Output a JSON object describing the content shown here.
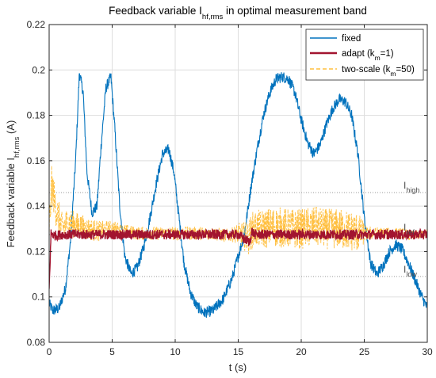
{
  "chart_data": {
    "type": "line",
    "title": "Feedback variable I",
    "title_sub": "hf,rms",
    "title_rest": " in optimal measurement band",
    "xlabel": "t (s)",
    "ylabel": "Feedback variable I",
    "ylabel_sub": "hf,rms",
    "ylabel_rest": " (A)",
    "xlim": [
      0,
      30
    ],
    "ylim": [
      0.08,
      0.22
    ],
    "xticks": [
      0,
      5,
      10,
      15,
      20,
      25,
      30
    ],
    "yticks": [
      0.08,
      0.1,
      0.12,
      0.14,
      0.16,
      0.18,
      0.2,
      0.22
    ],
    "xtick_labels": [
      "0",
      "5",
      "10",
      "15",
      "20",
      "25",
      "30"
    ],
    "ytick_labels": [
      "0.08",
      "0.1",
      "0.12",
      "0.14",
      "0.16",
      "0.18",
      "0.2",
      "0.22"
    ],
    "grid": true,
    "legend_position": "top-right",
    "legend_entries": [
      {
        "label": "fixed",
        "sub": "",
        "rest": ""
      },
      {
        "label": "adapt (k",
        "sub": "m",
        "rest": "=1)"
      },
      {
        "label": "two-scale (k",
        "sub": "m",
        "rest": "=50)"
      }
    ],
    "annotations": [
      {
        "text": "I",
        "sub": "high",
        "y": 0.146
      },
      {
        "text": "I",
        "sub": "ref",
        "y": 0.1275
      },
      {
        "text": "I",
        "sub": "low",
        "y": 0.109
      }
    ],
    "reference_lines": [
      0.146,
      0.1275,
      0.109
    ],
    "series": [
      {
        "name": "fixed",
        "color": "#0072BD",
        "noise": 0.0025,
        "x": [
          0,
          0.3,
          0.8,
          1.3,
          1.7,
          2.1,
          2.4,
          2.7,
          3.0,
          3.4,
          3.8,
          4.1,
          4.5,
          4.9,
          5.2,
          5.6,
          6.0,
          6.5,
          7.0,
          7.5,
          8.0,
          8.5,
          9.0,
          9.5,
          9.9,
          10.3,
          10.7,
          11.2,
          11.7,
          12.3,
          13.0,
          13.8,
          14.5,
          15.0,
          15.5,
          16.0,
          16.5,
          17.0,
          17.5,
          18.0,
          18.5,
          19.0,
          19.5,
          20.0,
          20.5,
          21.0,
          21.5,
          22.0,
          22.5,
          23.0,
          23.5,
          24.0,
          24.5,
          25.0,
          25.5,
          26.0,
          26.5,
          27.0,
          27.5,
          28.0,
          28.5,
          29.0,
          29.5,
          30.0
        ],
        "y": [
          0.097,
          0.094,
          0.095,
          0.104,
          0.125,
          0.16,
          0.199,
          0.19,
          0.155,
          0.137,
          0.14,
          0.165,
          0.192,
          0.197,
          0.175,
          0.14,
          0.118,
          0.11,
          0.113,
          0.122,
          0.135,
          0.15,
          0.163,
          0.165,
          0.155,
          0.135,
          0.115,
          0.102,
          0.096,
          0.093,
          0.094,
          0.099,
          0.108,
          0.118,
          0.128,
          0.148,
          0.165,
          0.18,
          0.19,
          0.196,
          0.197,
          0.196,
          0.19,
          0.178,
          0.168,
          0.163,
          0.167,
          0.176,
          0.183,
          0.187,
          0.186,
          0.18,
          0.163,
          0.135,
          0.115,
          0.11,
          0.114,
          0.12,
          0.123,
          0.121,
          0.115,
          0.108,
          0.101,
          0.095
        ]
      },
      {
        "name": "two-scale (k_m=50)",
        "color": "#FFBF3F",
        "dashed": true,
        "noise": 0.006,
        "x": [
          0,
          0.2,
          0.5,
          1.0,
          1.5,
          2.0,
          3.0,
          4.0,
          5.0,
          6.0,
          7.0,
          8.0,
          9.0,
          10.0,
          11.0,
          12.0,
          13.0,
          14.0,
          15.0,
          15.8,
          16.2,
          17.0,
          18.0,
          19.0,
          20.0,
          21.0,
          22.0,
          23.0,
          24.0,
          25.0,
          26.0,
          27.0,
          28.0,
          29.0,
          30.0
        ],
        "y": [
          0.128,
          0.15,
          0.14,
          0.13,
          0.133,
          0.132,
          0.13,
          0.129,
          0.13,
          0.129,
          0.128,
          0.128,
          0.128,
          0.128,
          0.128,
          0.128,
          0.128,
          0.127,
          0.128,
          0.126,
          0.13,
          0.13,
          0.131,
          0.13,
          0.13,
          0.131,
          0.13,
          0.13,
          0.129,
          0.128,
          0.128,
          0.128,
          0.128,
          0.127,
          0.128
        ],
        "noise_profile": [
          [
            0,
            0.009
          ],
          [
            2,
            0.006
          ],
          [
            6,
            0.003
          ],
          [
            14.5,
            0.003
          ],
          [
            16,
            0.008
          ],
          [
            17.5,
            0.009
          ],
          [
            24.5,
            0.009
          ],
          [
            25.2,
            0.003
          ],
          [
            30,
            0.002
          ]
        ]
      },
      {
        "name": "adapt (k_m=1)",
        "color": "#A2142F",
        "noise": 0.0022,
        "x": [
          0,
          0.15,
          0.4,
          1.0,
          5.0,
          10.0,
          15.0,
          15.9,
          16.1,
          16.3,
          20.0,
          25.0,
          30.0
        ],
        "y": [
          0.103,
          0.128,
          0.127,
          0.1275,
          0.1275,
          0.1275,
          0.1275,
          0.124,
          0.129,
          0.1275,
          0.1275,
          0.1275,
          0.1275
        ]
      }
    ]
  }
}
